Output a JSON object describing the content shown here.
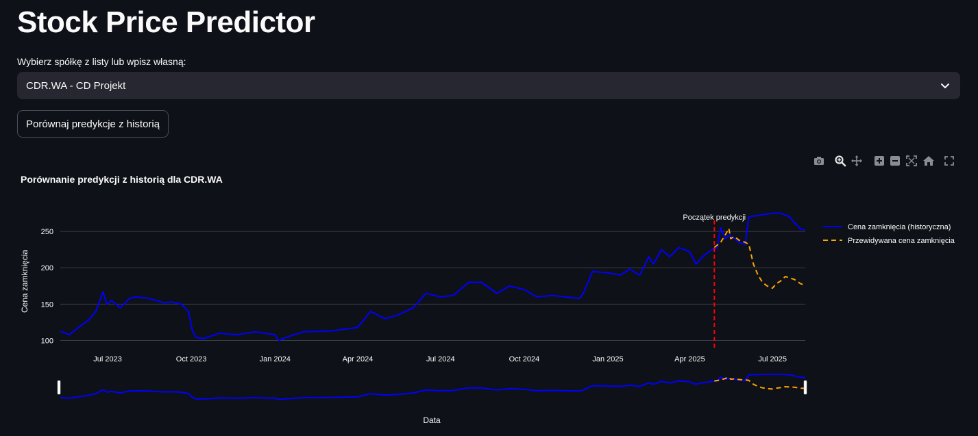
{
  "page": {
    "title": "Stock Price Predictor"
  },
  "selector": {
    "label": "Wybierz spółkę z listy lub wpisz własną:",
    "value": "CDR.WA - CD Projekt"
  },
  "compare_button": {
    "label": "Porównaj predykcje z historią"
  },
  "modebar": {
    "icons": [
      "camera-icon",
      "zoom-icon",
      "pan-icon",
      "zoom-in-icon",
      "zoom-out-icon",
      "autoscale-icon",
      "reset-axes-icon",
      "fullscreen-icon"
    ]
  },
  "colors": {
    "historical": "#0000ff",
    "prediction": "#ffa500",
    "marker": "#ff0000",
    "background": "#0e1117"
  },
  "chart_data": {
    "type": "line",
    "title": "Porównanie predykcji z historią dla CDR.WA",
    "xlabel": "Data",
    "ylabel": "Cena zamknięcia",
    "x_range": [
      "2023-05-10",
      "2025-08-06"
    ],
    "ylim": [
      93,
      283
    ],
    "x_tick_labels": [
      "Jul 2023",
      "Oct 2023",
      "Jan 2024",
      "Apr 2024",
      "Jul 2024",
      "Oct 2024",
      "Jan 2025",
      "Apr 2025",
      "Jul 2025"
    ],
    "y_ticks": [
      100,
      150,
      200,
      250
    ],
    "grid": true,
    "legend_position": "top-right",
    "rangeslider": true,
    "annotation": {
      "x": "2025-04-28",
      "text": "Początek predykcji"
    },
    "series": [
      {
        "name": "Cena zamknięcia (historyczna)",
        "style": "solid",
        "x": [
          "2023-05-10",
          "2023-05-20",
          "2023-06-01",
          "2023-06-10",
          "2023-06-18",
          "2023-06-26",
          "2023-06-30",
          "2023-07-05",
          "2023-07-15",
          "2023-07-25",
          "2023-08-01",
          "2023-08-15",
          "2023-09-01",
          "2023-09-10",
          "2023-09-20",
          "2023-09-28",
          "2023-10-02",
          "2023-10-06",
          "2023-10-15",
          "2023-11-01",
          "2023-11-20",
          "2023-12-10",
          "2024-01-01",
          "2024-01-05",
          "2024-01-15",
          "2024-02-01",
          "2024-03-01",
          "2024-04-01",
          "2024-04-15",
          "2024-05-01",
          "2024-05-15",
          "2024-06-01",
          "2024-06-15",
          "2024-07-01",
          "2024-07-15",
          "2024-08-01",
          "2024-08-15",
          "2024-09-01",
          "2024-09-15",
          "2024-10-01",
          "2024-10-15",
          "2024-11-01",
          "2024-11-15",
          "2024-12-01",
          "2024-12-05",
          "2024-12-15",
          "2025-01-01",
          "2025-01-15",
          "2025-01-25",
          "2025-02-05",
          "2025-02-15",
          "2025-02-20",
          "2025-03-01",
          "2025-03-10",
          "2025-03-20",
          "2025-04-01",
          "2025-04-08",
          "2025-04-15",
          "2025-04-25",
          "2025-05-01",
          "2025-05-05",
          "2025-05-10",
          "2025-05-15",
          "2025-05-20",
          "2025-05-25",
          "2025-06-01",
          "2025-06-05",
          "2025-06-15",
          "2025-07-01",
          "2025-07-10",
          "2025-07-20",
          "2025-07-25",
          "2025-08-01",
          "2025-08-06"
        ],
        "y": [
          113,
          108,
          120,
          128,
          140,
          167,
          150,
          155,
          145,
          158,
          160,
          158,
          152,
          153,
          150,
          140,
          115,
          104,
          103,
          110,
          108,
          112,
          108,
          100,
          105,
          112,
          113,
          118,
          140,
          130,
          135,
          145,
          165,
          160,
          162,
          180,
          180,
          165,
          175,
          170,
          160,
          162,
          160,
          158,
          165,
          195,
          193,
          190,
          198,
          190,
          215,
          205,
          225,
          215,
          228,
          222,
          205,
          215,
          225,
          227,
          255,
          240,
          245,
          240,
          235,
          232,
          270,
          272,
          275,
          275,
          270,
          262,
          253,
          252
        ]
      },
      {
        "name": "Przewidywana cena zamknięcia",
        "style": "dashed",
        "x": [
          "2025-04-28",
          "2025-05-05",
          "2025-05-10",
          "2025-05-14",
          "2025-05-16",
          "2025-05-20",
          "2025-05-25",
          "2025-06-01",
          "2025-06-05",
          "2025-06-10",
          "2025-06-15",
          "2025-06-20",
          "2025-06-25",
          "2025-07-01",
          "2025-07-05",
          "2025-07-10",
          "2025-07-15",
          "2025-07-20",
          "2025-07-25",
          "2025-08-01",
          "2025-08-06"
        ],
        "y": [
          228,
          235,
          245,
          254,
          240,
          243,
          238,
          235,
          232,
          205,
          190,
          180,
          175,
          172,
          178,
          182,
          188,
          186,
          184,
          178,
          176
        ]
      }
    ]
  }
}
